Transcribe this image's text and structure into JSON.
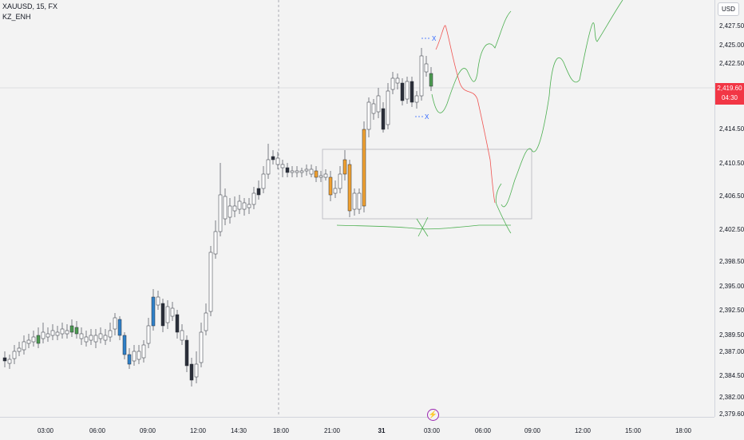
{
  "header": {
    "symbol": "XAUUSD, 15, FX",
    "indicator": "KZ_ENH"
  },
  "price_axis": {
    "currency": "USD",
    "labels": [
      "2,427.50",
      "2,425.00",
      "2,422.50",
      "2,414.50",
      "2,410.50",
      "2,406.50",
      "2,402.50",
      "2,398.50",
      "2,395.00",
      "2,392.50",
      "2,389.50",
      "2,387.00",
      "2,384.50",
      "2,382.00",
      "2,379.60"
    ],
    "last_price": "2,419.60",
    "countdown": "04:30",
    "last_price_color": "#f23645"
  },
  "time_axis": {
    "labels": [
      "03:00",
      "06:00",
      "09:00",
      "12:00",
      "14:30",
      "18:00",
      "21:00",
      "31",
      "03:00",
      "06:00",
      "09:00",
      "12:00",
      "15:00",
      "18:00"
    ]
  },
  "drawing_marks": {
    "x_top": "X",
    "x_bottom": "X"
  },
  "colors": {
    "bull": "#ffffff",
    "bear": "#2a2e39",
    "orange": "#f0a030",
    "blue": "#2f80c8",
    "green": "#4c9a50",
    "projection_green": "#4caf50",
    "projection_red": "#ef5350"
  },
  "icons": {
    "lightning": "lightning-icon"
  },
  "chart_data": {
    "type": "candlestick",
    "symbol": "XAUUSD",
    "timeframe": "15",
    "ylim": [
      2379.6,
      2429
    ],
    "x_ticks": [
      "03:00",
      "06:00",
      "09:00",
      "12:00",
      "14:30",
      "18:00",
      "21:00",
      "31",
      "03:00",
      "06:00",
      "09:00",
      "12:00",
      "15:00",
      "18:00"
    ],
    "last_price": 2419.6
  }
}
